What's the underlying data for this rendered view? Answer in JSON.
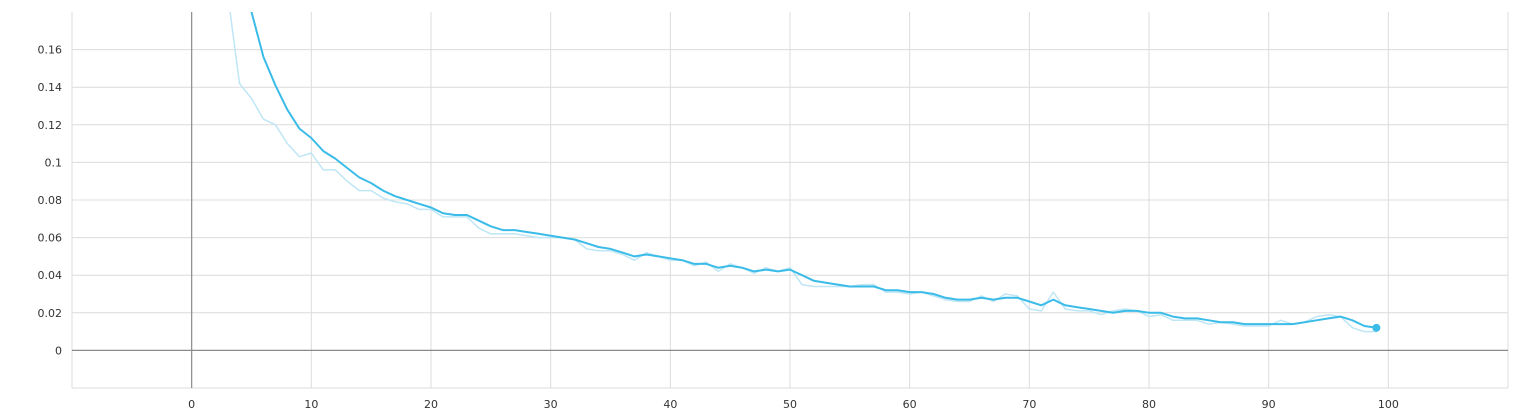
{
  "chart_data": {
    "type": "line",
    "title": "",
    "xlabel": "",
    "ylabel": "",
    "xlim": [
      -10,
      110
    ],
    "ylim": [
      -0.02,
      0.18
    ],
    "grid": true,
    "legend": "none",
    "x_ticks": [
      0,
      10,
      20,
      30,
      40,
      50,
      60,
      70,
      80,
      90,
      100
    ],
    "y_ticks": [
      0,
      0.02,
      0.04,
      0.06,
      0.08,
      0.1,
      0.12,
      0.14,
      0.16
    ],
    "x_tick_labels": [
      "0",
      "10",
      "20",
      "30",
      "40",
      "50",
      "60",
      "70",
      "80",
      "90",
      "100"
    ],
    "y_tick_labels": [
      "0",
      "0.02",
      "0.04",
      "0.06",
      "0.08",
      "0.1",
      "0.12",
      "0.14",
      "0.16"
    ],
    "series": [
      {
        "role": "raw",
        "color": "#bfe6f5",
        "x": [
          3,
          4,
          5,
          6,
          7,
          8,
          9,
          10,
          11,
          12,
          13,
          14,
          15,
          16,
          17,
          18,
          19,
          20,
          21,
          22,
          23,
          24,
          25,
          26,
          27,
          28,
          29,
          30,
          31,
          32,
          33,
          34,
          35,
          36,
          37,
          38,
          39,
          40,
          41,
          42,
          43,
          44,
          45,
          46,
          47,
          48,
          49,
          50,
          51,
          52,
          53,
          54,
          55,
          56,
          57,
          58,
          59,
          60,
          61,
          62,
          63,
          64,
          65,
          66,
          67,
          68,
          69,
          70,
          71,
          72,
          73,
          74,
          75,
          76,
          77,
          78,
          79,
          80,
          81,
          82,
          83,
          84,
          85,
          86,
          87,
          88,
          89,
          90,
          91,
          92,
          93,
          94,
          95,
          96,
          97,
          98,
          99
        ],
        "y": [
          0.19,
          0.142,
          0.134,
          0.123,
          0.12,
          0.11,
          0.103,
          0.105,
          0.096,
          0.096,
          0.09,
          0.085,
          0.085,
          0.081,
          0.079,
          0.078,
          0.075,
          0.075,
          0.071,
          0.071,
          0.071,
          0.065,
          0.062,
          0.062,
          0.062,
          0.061,
          0.06,
          0.06,
          0.06,
          0.059,
          0.054,
          0.053,
          0.053,
          0.051,
          0.048,
          0.052,
          0.05,
          0.048,
          0.048,
          0.045,
          0.047,
          0.042,
          0.046,
          0.044,
          0.041,
          0.044,
          0.042,
          0.044,
          0.035,
          0.034,
          0.034,
          0.034,
          0.034,
          0.035,
          0.035,
          0.031,
          0.031,
          0.03,
          0.031,
          0.029,
          0.027,
          0.026,
          0.026,
          0.029,
          0.026,
          0.03,
          0.029,
          0.022,
          0.021,
          0.031,
          0.022,
          0.021,
          0.021,
          0.019,
          0.021,
          0.022,
          0.021,
          0.018,
          0.019,
          0.016,
          0.016,
          0.016,
          0.014,
          0.015,
          0.014,
          0.013,
          0.013,
          0.013,
          0.016,
          0.014,
          0.015,
          0.018,
          0.019,
          0.018,
          0.012,
          0.01,
          0.01
        ]
      },
      {
        "role": "smoothed",
        "color": "#3bbce8",
        "x": [
          5,
          6,
          7,
          8,
          9,
          10,
          11,
          12,
          13,
          14,
          15,
          16,
          17,
          18,
          19,
          20,
          21,
          22,
          23,
          24,
          25,
          26,
          27,
          28,
          29,
          30,
          31,
          32,
          33,
          34,
          35,
          36,
          37,
          38,
          39,
          40,
          41,
          42,
          43,
          44,
          45,
          46,
          47,
          48,
          49,
          50,
          51,
          52,
          53,
          54,
          55,
          56,
          57,
          58,
          59,
          60,
          61,
          62,
          63,
          64,
          65,
          66,
          67,
          68,
          69,
          70,
          71,
          72,
          73,
          74,
          75,
          76,
          77,
          78,
          79,
          80,
          81,
          82,
          83,
          84,
          85,
          86,
          87,
          88,
          89,
          90,
          91,
          92,
          93,
          94,
          95,
          96,
          97,
          98,
          99
        ],
        "y": [
          0.18,
          0.156,
          0.141,
          0.128,
          0.118,
          0.113,
          0.106,
          0.102,
          0.097,
          0.092,
          0.089,
          0.085,
          0.082,
          0.08,
          0.078,
          0.076,
          0.073,
          0.072,
          0.072,
          0.069,
          0.066,
          0.064,
          0.064,
          0.063,
          0.062,
          0.061,
          0.06,
          0.059,
          0.057,
          0.055,
          0.054,
          0.052,
          0.05,
          0.051,
          0.05,
          0.049,
          0.048,
          0.046,
          0.046,
          0.044,
          0.045,
          0.044,
          0.042,
          0.043,
          0.042,
          0.043,
          0.04,
          0.037,
          0.036,
          0.035,
          0.034,
          0.034,
          0.034,
          0.032,
          0.032,
          0.031,
          0.031,
          0.03,
          0.028,
          0.027,
          0.027,
          0.028,
          0.027,
          0.028,
          0.028,
          0.026,
          0.024,
          0.027,
          0.024,
          0.023,
          0.022,
          0.021,
          0.02,
          0.021,
          0.021,
          0.02,
          0.02,
          0.018,
          0.017,
          0.017,
          0.016,
          0.015,
          0.015,
          0.014,
          0.014,
          0.014,
          0.014,
          0.014,
          0.015,
          0.016,
          0.017,
          0.018,
          0.016,
          0.013,
          0.012
        ]
      }
    ]
  }
}
